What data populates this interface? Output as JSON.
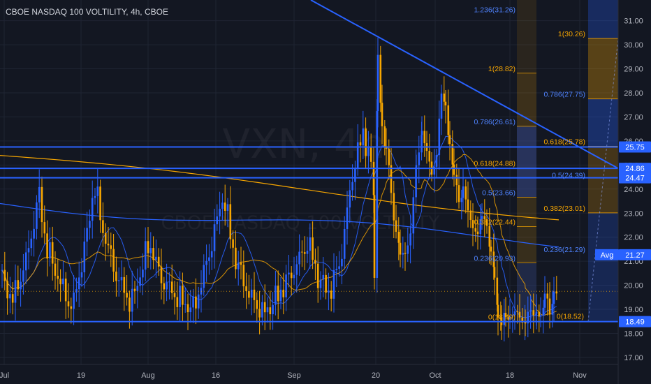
{
  "chart_title": "CBOE NASDAQ 100 VOLTILITY, 4h, CBOE",
  "watermark": {
    "symbol": "VXN, 4h",
    "name": "CBOE NASDAQ 100 VOLTILITY"
  },
  "avg_label": "Avg",
  "chart_data": {
    "type": "candlestick",
    "title": "CBOE NASDAQ 100 VOLTILITY, 4h, CBOE",
    "x_ticks": [
      "Jul",
      "19",
      "Aug",
      "16",
      "Sep",
      "20",
      "Oct",
      "18",
      "Nov"
    ],
    "y_ticks": [
      "17.00",
      "18.00",
      "19.00",
      "20.00",
      "21.00",
      "22.00",
      "23.00",
      "24.00",
      "25.00",
      "26.00",
      "27.00",
      "28.00",
      "29.00",
      "30.00",
      "31.00"
    ],
    "ylim": [
      16.5,
      31.8
    ],
    "colors": {
      "up": "#2962ff",
      "down": "#f7a600",
      "line": "#2962ff",
      "fib_blue": "#4f83ff",
      "fib_orange": "#f7a600"
    },
    "price_labels": [
      {
        "value": 25.75,
        "text": "25.75"
      },
      {
        "value": 24.86,
        "text": "24.86"
      },
      {
        "value": 24.47,
        "text": "24.47"
      },
      {
        "value": 21.27,
        "text": "21.27"
      },
      {
        "value": 18.49,
        "text": "18.49"
      }
    ],
    "support_resistance": [
      25.75,
      24.86,
      24.47,
      18.49
    ],
    "downtrend_line": {
      "from_value": 31.8,
      "to_value": 24.86
    },
    "fib_blue": [
      {
        "value": 31.26,
        "label": "1.236(31.26)"
      },
      {
        "value": 27.75,
        "label": "0.786(27.75)"
      },
      {
        "value": 26.61,
        "label": "0.786(26.61)"
      },
      {
        "value": 24.39,
        "label": "0.5(24.39)"
      },
      {
        "value": 23.66,
        "label": "0.5(23.66)"
      },
      {
        "value": 21.29,
        "label": "0.236(21.29)"
      },
      {
        "value": 20.93,
        "label": "0.236(20.93)"
      }
    ],
    "fib_orange": [
      {
        "value": 30.26,
        "label": "1(30.26)"
      },
      {
        "value": 28.82,
        "label": "1(28.82)"
      },
      {
        "value": 25.78,
        "label": "0.618(25.78)"
      },
      {
        "value": 24.88,
        "label": "0.618(24.88)"
      },
      {
        "value": 23.01,
        "label": "0.382(23.01)"
      },
      {
        "value": 22.44,
        "label": "0.382(22.44)"
      },
      {
        "value": 18.49,
        "label": "0(18.49)"
      },
      {
        "value": 18.52,
        "label": "0(18.52)"
      }
    ]
  }
}
